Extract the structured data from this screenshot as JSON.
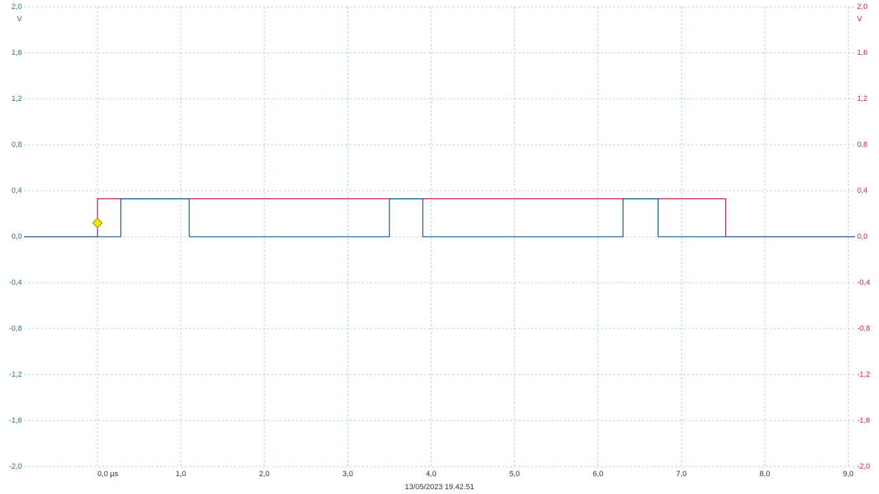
{
  "chart_data": {
    "type": "line",
    "ylabel": "V",
    "y2label": "V",
    "annotations": [
      "13/05/2023 19.42.51"
    ],
    "xlim": [
      -0.88,
      9.08
    ],
    "xticks": [
      {
        "value": 0,
        "label": "0,0 µs"
      },
      {
        "value": 1,
        "label": "1,0"
      },
      {
        "value": 2,
        "label": "2,0"
      },
      {
        "value": 3,
        "label": "3,0"
      },
      {
        "value": 4,
        "label": "4,0"
      },
      {
        "value": 5,
        "label": "5,0"
      },
      {
        "value": 6,
        "label": "6,0"
      },
      {
        "value": 7,
        "label": "7,0"
      },
      {
        "value": 8,
        "label": "8,0"
      },
      {
        "value": 9,
        "label": "9,0"
      }
    ],
    "ylim": [
      -2,
      2
    ],
    "yticks": [
      {
        "value": -2,
        "label": "-2,0"
      },
      {
        "value": -1.6,
        "label": "-1,6"
      },
      {
        "value": -1.2,
        "label": "-1,2"
      },
      {
        "value": -0.8,
        "label": "-0,8"
      },
      {
        "value": -0.4,
        "label": "-0,4"
      },
      {
        "value": 0,
        "label": "0,0"
      },
      {
        "value": 0.4,
        "label": "0,4"
      },
      {
        "value": 0.8,
        "label": "0,8"
      },
      {
        "value": 1.2,
        "label": "1,2"
      },
      {
        "value": 1.6,
        "label": "1,6"
      },
      {
        "value": 2,
        "label": "2,0"
      }
    ],
    "y2lim": [
      -2,
      2
    ],
    "y2ticks": [
      {
        "value": -2,
        "label": "-2,0"
      },
      {
        "value": -1.6,
        "label": "-1,6"
      },
      {
        "value": -1.2,
        "label": "-1,2"
      },
      {
        "value": -0.8,
        "label": "-0,8"
      },
      {
        "value": -0.4,
        "label": "-0,4"
      },
      {
        "value": 0,
        "label": "0,0"
      },
      {
        "value": 0.4,
        "label": "0,4"
      },
      {
        "value": 0.8,
        "label": "0,8"
      },
      {
        "value": 1.2,
        "label": "1,2"
      },
      {
        "value": 1.6,
        "label": "1,6"
      },
      {
        "value": 2,
        "label": "2,0"
      }
    ],
    "yaxis_color": "#2a6fa5",
    "y2axis_color": "#d0264e",
    "grid": true,
    "series": [
      {
        "color": "#c8174a",
        "axis": "y2",
        "x": [
          -0.88,
          0,
          0,
          7.53,
          7.53,
          9.08
        ],
        "values": [
          0,
          0,
          0.33,
          0.33,
          0,
          0
        ]
      },
      {
        "color": "#0b5a96",
        "x": [
          -0.88,
          0.28,
          0.28,
          1.1,
          1.1,
          3.5,
          3.5,
          3.9,
          3.9,
          6.3,
          6.3,
          6.72,
          6.72,
          9.08
        ],
        "values": [
          0,
          0,
          0.33,
          0.33,
          0,
          0,
          0.33,
          0.33,
          0,
          0,
          0.33,
          0.33,
          0,
          0
        ]
      }
    ]
  }
}
